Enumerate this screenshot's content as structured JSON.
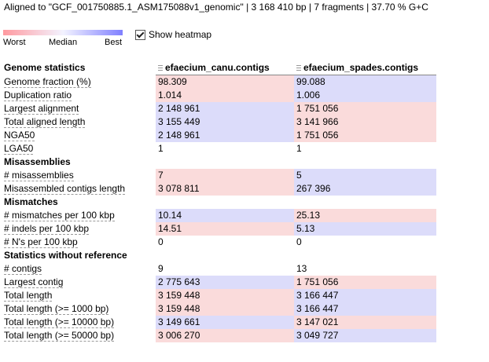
{
  "header": {
    "text": "Aligned to \"GCF_001750885.1_ASM175088v1_genomic\" | 3 168 410 bp | 7 fragments | 37.70 % G+C"
  },
  "legend": {
    "worst": "Worst",
    "median": "Median",
    "best": "Best"
  },
  "heatmap_toggle": {
    "label": "Show heatmap",
    "checked": true
  },
  "colors": {
    "worse": "#fadbdb",
    "better": "#dcdcfa"
  },
  "table": {
    "first_group": "Genome statistics",
    "assemblies": [
      "efaecium_canu.contigs",
      "efaecium_spades.contigs"
    ],
    "groups": [
      {
        "rows": [
          {
            "name": "Genome fraction (%)",
            "values": [
              "98.309",
              "99.088"
            ],
            "heat": [
              "red",
              "blue"
            ]
          },
          {
            "name": "Duplication ratio",
            "values": [
              "1.014",
              "1.006"
            ],
            "heat": [
              "red",
              "blue"
            ]
          },
          {
            "name": "Largest alignment",
            "values": [
              "2 148 961",
              "1 751 056"
            ],
            "heat": [
              "blue",
              "red"
            ]
          },
          {
            "name": "Total aligned length",
            "values": [
              "3 155 449",
              "3 141 966"
            ],
            "heat": [
              "blue",
              "red"
            ]
          },
          {
            "name": "NGA50",
            "values": [
              "2 148 961",
              "1 751 056"
            ],
            "heat": [
              "blue",
              "red"
            ]
          },
          {
            "name": "LGA50",
            "values": [
              "1",
              "1"
            ],
            "heat": [
              "",
              ""
            ]
          }
        ]
      },
      {
        "title": "Misassemblies",
        "rows": [
          {
            "name": "# misassemblies",
            "values": [
              "7",
              "5"
            ],
            "heat": [
              "red",
              "blue"
            ]
          },
          {
            "name": "Misassembled contigs length",
            "values": [
              "3 078 811",
              "267 396"
            ],
            "heat": [
              "red",
              "blue"
            ]
          }
        ]
      },
      {
        "title": "Mismatches",
        "rows": [
          {
            "name": "# mismatches per 100 kbp",
            "values": [
              "10.14",
              "25.13"
            ],
            "heat": [
              "blue",
              "red"
            ]
          },
          {
            "name": "# indels per 100 kbp",
            "values": [
              "14.51",
              "5.13"
            ],
            "heat": [
              "red",
              "blue"
            ]
          },
          {
            "name": "# N's per 100 kbp",
            "values": [
              "0",
              "0"
            ],
            "heat": [
              "",
              ""
            ]
          }
        ]
      },
      {
        "title": "Statistics without reference",
        "rows": [
          {
            "name": "# contigs",
            "values": [
              "9",
              "13"
            ],
            "heat": [
              "",
              ""
            ]
          },
          {
            "name": "Largest contig",
            "values": [
              "2 775 643",
              "1 751 056"
            ],
            "heat": [
              "blue",
              "red"
            ]
          },
          {
            "name": "Total length",
            "values": [
              "3 159 448",
              "3 166 447"
            ],
            "heat": [
              "red",
              "blue"
            ]
          },
          {
            "name": "Total length (>= 1000 bp)",
            "values": [
              "3 159 448",
              "3 166 447"
            ],
            "heat": [
              "red",
              "blue"
            ]
          },
          {
            "name": "Total length (>= 10000 bp)",
            "values": [
              "3 149 661",
              "3 147 021"
            ],
            "heat": [
              "blue",
              "red"
            ]
          },
          {
            "name": "Total length (>= 50000 bp)",
            "values": [
              "3 006 270",
              "3 049 727"
            ],
            "heat": [
              "red",
              "blue"
            ]
          }
        ]
      }
    ]
  }
}
